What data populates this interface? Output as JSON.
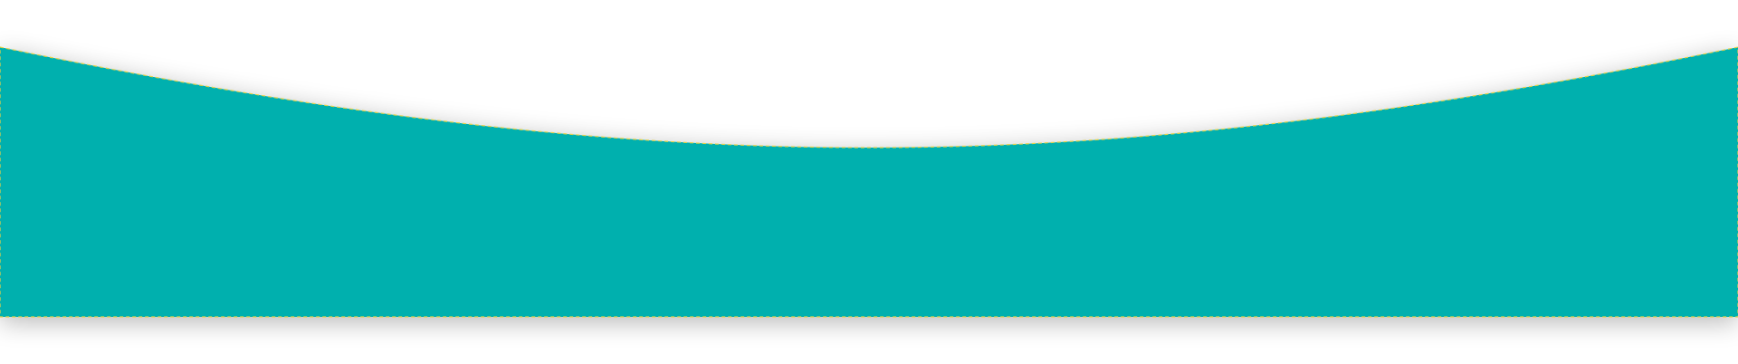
{
  "banner": {
    "fill_color": "#04b0ae",
    "dashed_outline_color": "#e6d24a",
    "shadow_color": "#000000",
    "background_color": "#ffffff"
  }
}
